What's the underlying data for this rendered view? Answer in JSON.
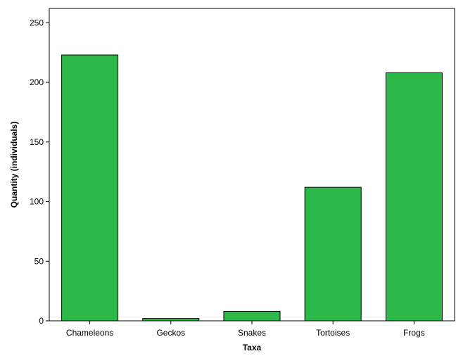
{
  "chart_data": {
    "type": "bar",
    "title": "",
    "xlabel": "Taxa",
    "ylabel": "Quantity (individuals)",
    "categories": [
      "Chameleons",
      "Geckos",
      "Snakes",
      "Tortoises",
      "Frogs"
    ],
    "values": [
      223,
      2,
      8,
      112,
      208
    ],
    "ylim": [
      0,
      262
    ],
    "yticks": [
      0,
      50,
      100,
      150,
      200,
      250
    ],
    "grid": false,
    "legend": "none",
    "bar_color": "#2db84a",
    "bar_edge_color": "#000000"
  }
}
